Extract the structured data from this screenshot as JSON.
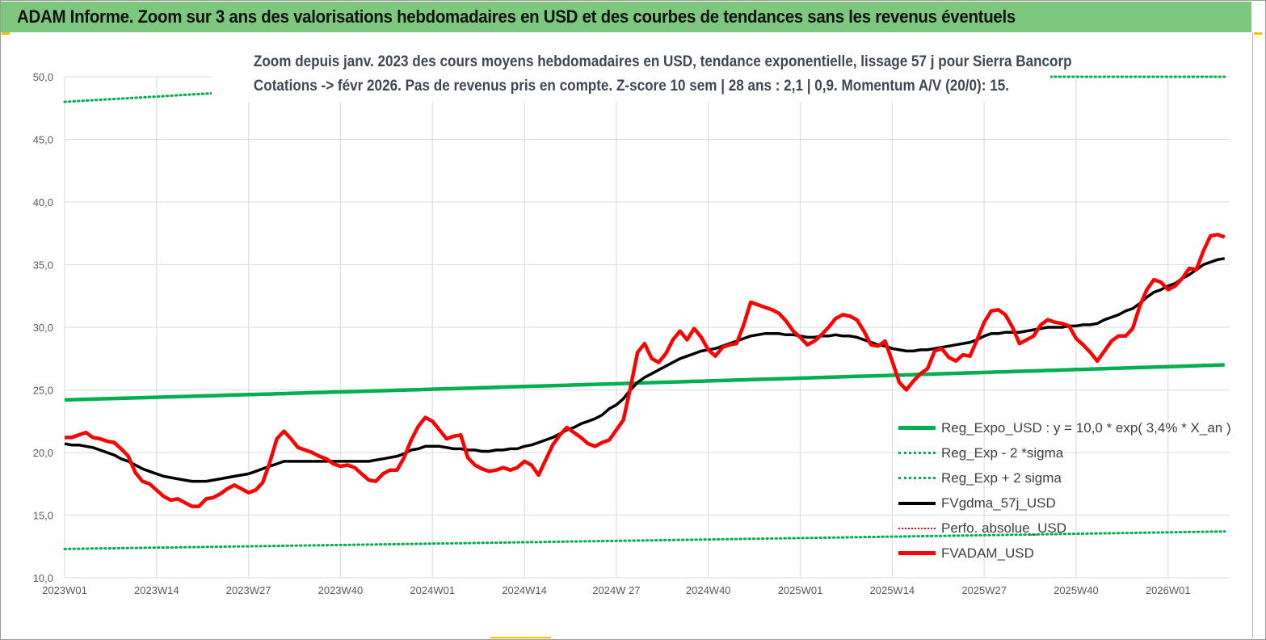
{
  "header": {
    "title": "ADAM Informe. Zoom sur 3 ans des valorisations hebdomadaires en USD et des courbes de tendances sans les revenus éventuels"
  },
  "chart_data": {
    "type": "line",
    "subtitle_lines": [
      "Zoom depuis janv. 2023 des cours moyens hebdomadaires en USD, tendance exponentielle, lissage 57 j pour Sierra Bancorp",
      "Cotations -> févr 2026.  Pas de revenus pris en compte. Z-score 10 sem  | 28 ans : 2,1 | 0,9. Momentum A/V (20/0): 15."
    ],
    "x_frequency": "weekly",
    "x_tick_labels": [
      "2023W01",
      "2023W14",
      "2023W27",
      "2023W40",
      "2024W01",
      "2024W14",
      "2024W 27",
      "2024W40",
      "2025W01",
      "2025W14",
      "2025W27",
      "2025W40",
      "2026W01"
    ],
    "y_tick_labels": [
      "10,0",
      "15,0",
      "20,0",
      "25,0",
      "30,0",
      "35,0",
      "40,0",
      "45,0",
      "50,0"
    ],
    "ylim": [
      10,
      50
    ],
    "grid": true,
    "legend_position": "bottom-right",
    "series": [
      {
        "name": "Reg_Expo_USD : y = 10,0 * exp( 3,4% *  X_an )",
        "style": "solid",
        "color": "#00b050",
        "start": 24.2,
        "end": 27.0
      },
      {
        "name": "Reg_Exp - 2 *sigma",
        "style": "dotted",
        "color": "#00b050",
        "start": 12.3,
        "end": 13.7
      },
      {
        "name": "Reg_Exp + 2 sigma",
        "style": "dotted",
        "color": "#00b050",
        "start": 48.0,
        "end": 53.6
      },
      {
        "name": "FVgdma_57j_USD",
        "style": "solid",
        "color": "#000000",
        "values": [
          20.7,
          20.6,
          20.6,
          20.5,
          20.4,
          20.2,
          20.0,
          19.8,
          19.5,
          19.3,
          19.0,
          18.7,
          18.5,
          18.3,
          18.1,
          18.0,
          17.9,
          17.8,
          17.7,
          17.7,
          17.7,
          17.8,
          17.9,
          18.0,
          18.1,
          18.2,
          18.3,
          18.5,
          18.7,
          18.9,
          19.1,
          19.3,
          19.3,
          19.3,
          19.3,
          19.3,
          19.3,
          19.3,
          19.3,
          19.3,
          19.3,
          19.3,
          19.3,
          19.3,
          19.4,
          19.5,
          19.6,
          19.7,
          19.9,
          20.2,
          20.3,
          20.5,
          20.5,
          20.5,
          20.4,
          20.3,
          20.3,
          20.2,
          20.2,
          20.1,
          20.1,
          20.2,
          20.2,
          20.3,
          20.3,
          20.5,
          20.6,
          20.8,
          21.0,
          21.2,
          21.5,
          21.8,
          22.0,
          22.3,
          22.5,
          22.7,
          23.0,
          23.5,
          23.8,
          24.3,
          25.0,
          25.6,
          26.0,
          26.3,
          26.6,
          26.9,
          27.2,
          27.5,
          27.7,
          27.9,
          28.1,
          28.2,
          28.3,
          28.5,
          28.7,
          28.9,
          29.1,
          29.3,
          29.4,
          29.5,
          29.5,
          29.5,
          29.4,
          29.4,
          29.3,
          29.2,
          29.2,
          29.3,
          29.3,
          29.4,
          29.3,
          29.3,
          29.2,
          29.0,
          28.8,
          28.6,
          28.5,
          28.3,
          28.2,
          28.1,
          28.1,
          28.2,
          28.2,
          28.3,
          28.4,
          28.5,
          28.6,
          28.7,
          28.8,
          29.0,
          29.3,
          29.5,
          29.5,
          29.6,
          29.6,
          29.6,
          29.7,
          29.8,
          29.9,
          30.0,
          30.0,
          30.0,
          30.1,
          30.1,
          30.2,
          30.2,
          30.3,
          30.6,
          30.8,
          31.0,
          31.3,
          31.5,
          31.9,
          32.4,
          32.8,
          33.0,
          33.3,
          33.5,
          33.9,
          34.2,
          34.6,
          35.0,
          35.2,
          35.4,
          35.5
        ]
      },
      {
        "name": "Perfo. absolue_USD",
        "style": "dotted",
        "color": "#e00000",
        "values": []
      },
      {
        "name": "FVADAM_USD",
        "style": "solid",
        "color": "#ff0000",
        "values": [
          21.2,
          21.2,
          21.4,
          21.6,
          21.2,
          21.1,
          20.9,
          20.8,
          20.3,
          19.7,
          18.4,
          17.7,
          17.5,
          17.0,
          16.5,
          16.2,
          16.3,
          16.0,
          15.7,
          15.7,
          16.3,
          16.4,
          16.7,
          17.1,
          17.4,
          17.1,
          16.8,
          17.0,
          17.6,
          19.2,
          21.1,
          21.7,
          21.1,
          20.4,
          20.2,
          20.0,
          19.7,
          19.5,
          19.1,
          18.9,
          19.0,
          18.8,
          18.3,
          17.8,
          17.7,
          18.3,
          18.6,
          18.6,
          19.6,
          21.0,
          22.1,
          22.8,
          22.5,
          21.8,
          21.1,
          21.3,
          21.4,
          19.6,
          19.0,
          18.7,
          18.5,
          18.6,
          18.8,
          18.6,
          18.8,
          19.3,
          19.0,
          18.2,
          19.4,
          20.6,
          21.4,
          22.0,
          21.6,
          21.2,
          20.7,
          20.5,
          20.8,
          21.0,
          21.8,
          22.6,
          25.2,
          28.0,
          28.7,
          27.5,
          27.2,
          27.9,
          29.0,
          29.7,
          29.0,
          29.9,
          29.2,
          28.2,
          27.7,
          28.4,
          28.6,
          28.7,
          30.2,
          32.0,
          31.8,
          31.6,
          31.4,
          31.1,
          30.5,
          29.7,
          29.2,
          28.6,
          28.9,
          29.4,
          30.0,
          30.7,
          31.0,
          30.9,
          30.6,
          29.7,
          28.6,
          28.5,
          28.9,
          27.3,
          25.6,
          25.0,
          25.7,
          26.3,
          26.7,
          28.1,
          28.3,
          27.6,
          27.3,
          27.8,
          27.7,
          29.0,
          30.4,
          31.3,
          31.4,
          31.0,
          30.0,
          28.7,
          29.0,
          29.3,
          30.2,
          30.6,
          30.4,
          30.3,
          30.1,
          29.1,
          28.6,
          28.0,
          27.3,
          28.1,
          28.9,
          29.3,
          29.3,
          29.9,
          31.7,
          33.0,
          33.8,
          33.6,
          33.0,
          33.3,
          33.9,
          34.7,
          34.6,
          36.1,
          37.3,
          37.4,
          37.2
        ]
      }
    ]
  }
}
